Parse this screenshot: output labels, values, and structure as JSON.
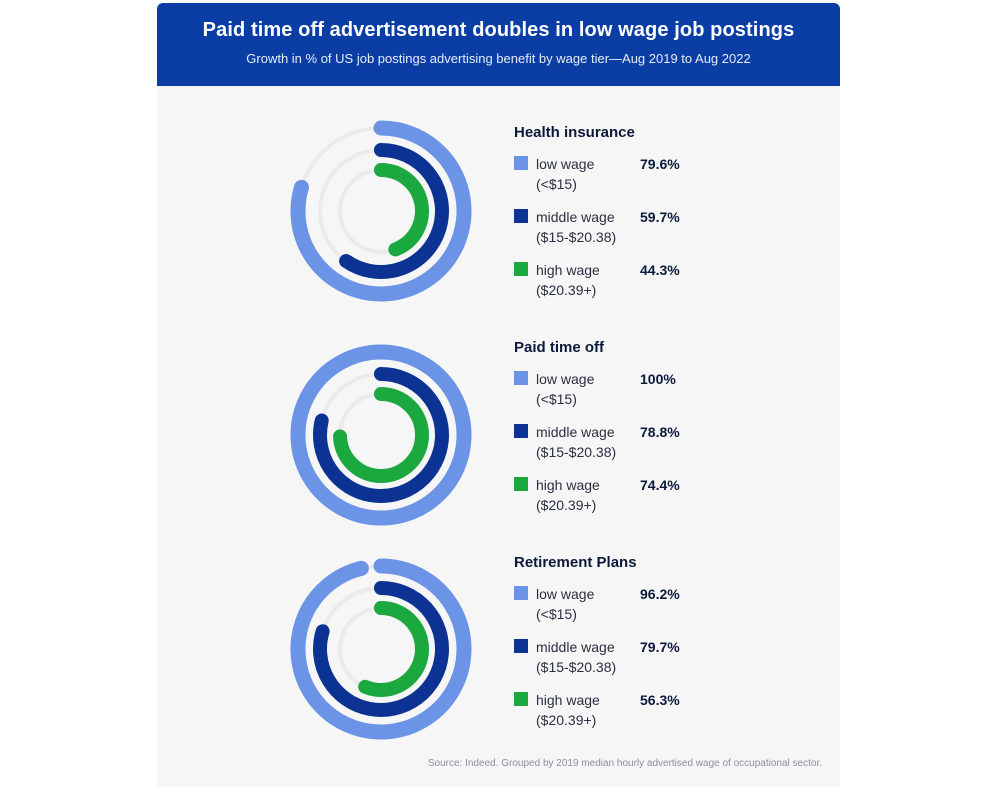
{
  "header": {
    "title": "Paid time off advertisement doubles in low wage job postings",
    "subtitle": "Growth in % of US job postings advertising benefit by wage tier—Aug 2019 to Aug 2022"
  },
  "colors": {
    "header_bg": "#0a3ea5",
    "low": "#6b93e6",
    "middle": "#0c3393",
    "high": "#1aa83f",
    "track": "#ebeaec"
  },
  "source": "Source: Indeed. Grouped by 2019 median hourly advertised wage of occupational sector.",
  "chart_data": [
    {
      "type": "radial-bar",
      "title": "Health insurance",
      "scale_max": 100,
      "series": [
        {
          "name": "low wage",
          "range": "(<$15)",
          "value": 79.6,
          "label": "79.6%"
        },
        {
          "name": "middle wage",
          "range": "($15-$20.38)",
          "value": 59.7,
          "label": "59.7%"
        },
        {
          "name": "high wage",
          "range": "($20.39+)",
          "value": 44.3,
          "label": "44.3%"
        }
      ]
    },
    {
      "type": "radial-bar",
      "title": "Paid time off",
      "scale_max": 100,
      "series": [
        {
          "name": "low wage",
          "range": "(<$15)",
          "value": 100,
          "label": "100%"
        },
        {
          "name": "middle wage",
          "range": "($15-$20.38)",
          "value": 78.8,
          "label": "78.8%"
        },
        {
          "name": "high wage",
          "range": "($20.39+)",
          "value": 74.4,
          "label": "74.4%"
        }
      ]
    },
    {
      "type": "radial-bar",
      "title": "Retirement Plans",
      "scale_max": 100,
      "series": [
        {
          "name": "low wage",
          "range": "(<$15)",
          "value": 96.2,
          "label": "96.2%"
        },
        {
          "name": "middle wage",
          "range": "($15-$20.38)",
          "value": 79.7,
          "label": "79.7%"
        },
        {
          "name": "high wage",
          "range": "($20.39+)",
          "value": 56.3,
          "label": "56.3%"
        }
      ]
    }
  ]
}
